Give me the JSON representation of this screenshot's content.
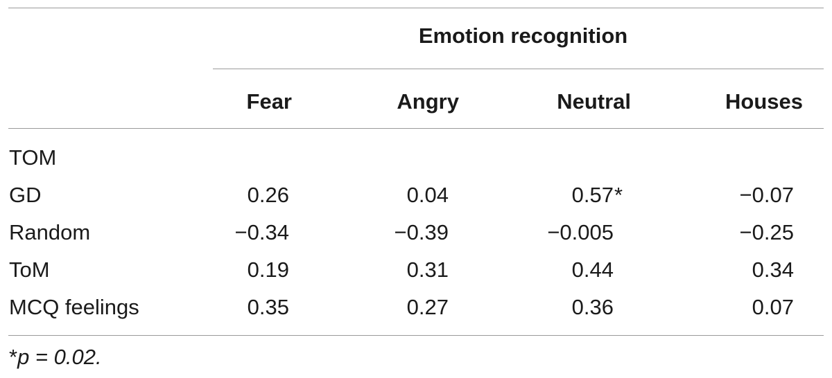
{
  "table": {
    "group_header": "Emotion recognition",
    "columns": [
      "Fear",
      "Angry",
      "Neutral",
      "Houses"
    ],
    "section_label": "TOM",
    "rows": [
      {
        "label": "GD",
        "cells": [
          "0.26",
          "0.04",
          "0.57",
          "−0.07"
        ],
        "mark": "*"
      },
      {
        "label": "Random",
        "cells": [
          "−0.34",
          "−0.39",
          "−0.005",
          "−0.25"
        ]
      },
      {
        "label": "ToM",
        "cells": [
          "0.19",
          "0.31",
          "0.44",
          "0.34"
        ]
      },
      {
        "label": "MCQ feelings",
        "cells": [
          "0.35",
          "0.27",
          "0.36",
          "0.07"
        ]
      }
    ]
  },
  "footnote": {
    "mark": "*",
    "text": "p = 0.02."
  }
}
